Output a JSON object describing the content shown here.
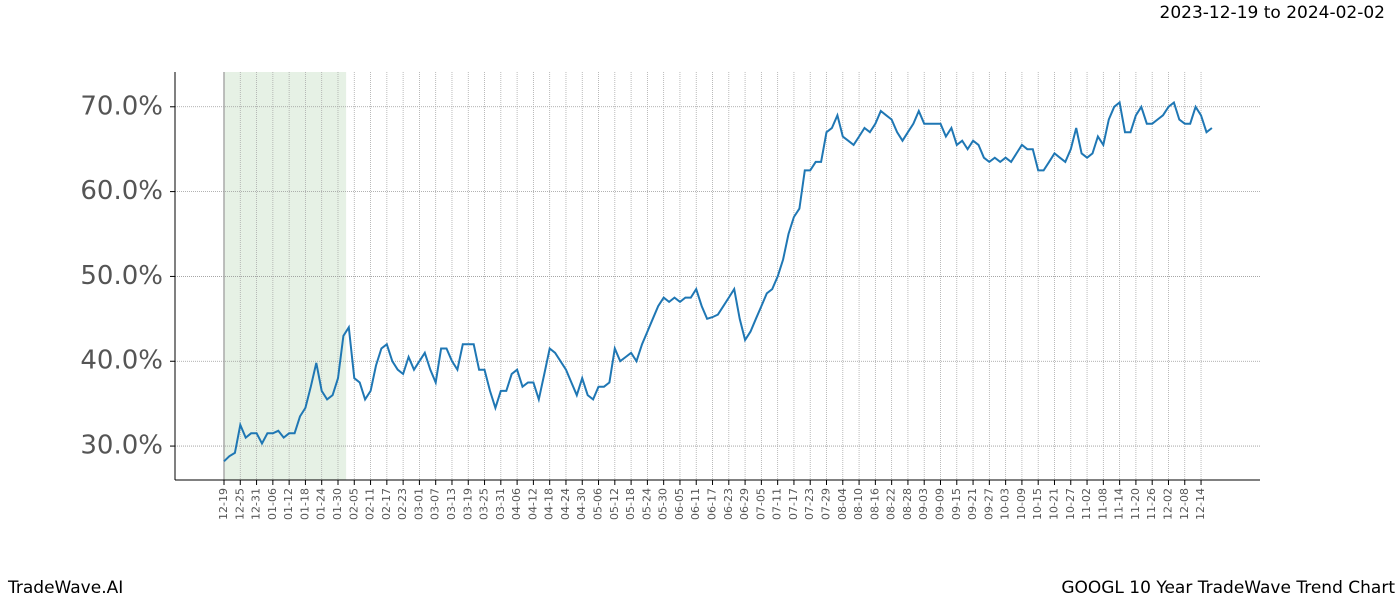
{
  "header": {
    "date_range": "2023-12-19 to 2024-02-02"
  },
  "footer": {
    "brand": "TradeWave.AI",
    "chart_name": "GOOGL 10 Year TradeWave Trend Chart"
  },
  "chart_data": {
    "type": "line",
    "color": "#1f77b4",
    "grid": true,
    "highlight": {
      "from": 0,
      "to": 22.5,
      "color": "#d5e8d4"
    },
    "ylim": [
      26,
      74.1
    ],
    "yticks": [
      {
        "value": 30,
        "label": "30.0%"
      },
      {
        "value": 40,
        "label": "40.0%"
      },
      {
        "value": 50,
        "label": "50.0%"
      },
      {
        "value": 60,
        "label": "60.0%"
      },
      {
        "value": 70,
        "label": "70.0%"
      }
    ],
    "categories": [
      "12-19",
      null,
      null,
      "12-25",
      null,
      null,
      "12-31",
      null,
      null,
      "01-06",
      null,
      null,
      "01-12",
      null,
      null,
      "01-18",
      null,
      null,
      "01-24",
      null,
      null,
      "01-30",
      null,
      null,
      "02-05",
      null,
      null,
      "02-11",
      null,
      null,
      "02-17",
      null,
      null,
      "02-23",
      null,
      null,
      "03-01",
      null,
      null,
      "03-07",
      null,
      null,
      "03-13",
      null,
      null,
      "03-19",
      null,
      null,
      "03-25",
      null,
      null,
      "03-31",
      null,
      null,
      "04-06",
      null,
      null,
      "04-12",
      null,
      null,
      "04-18",
      null,
      null,
      "04-24",
      null,
      null,
      "04-30",
      null,
      null,
      "05-06",
      null,
      null,
      "05-12",
      null,
      null,
      "05-18",
      null,
      null,
      "05-24",
      null,
      null,
      "05-30",
      null,
      null,
      "06-05",
      null,
      null,
      "06-11",
      null,
      null,
      "06-17",
      null,
      null,
      "06-23",
      null,
      null,
      "06-29",
      null,
      null,
      "07-05",
      null,
      null,
      "07-11",
      null,
      null,
      "07-17",
      null,
      null,
      "07-23",
      null,
      null,
      "07-29",
      null,
      null,
      "08-04",
      null,
      null,
      "08-10",
      null,
      null,
      "08-16",
      null,
      null,
      "08-22",
      null,
      null,
      "08-28",
      null,
      null,
      "09-03",
      null,
      null,
      "09-09",
      null,
      null,
      "09-15",
      null,
      null,
      "09-21",
      null,
      null,
      "09-27",
      null,
      null,
      "10-03",
      null,
      null,
      "10-09",
      null,
      null,
      "10-15",
      null,
      null,
      "10-21",
      null,
      null,
      "10-27",
      null,
      null,
      "11-02",
      null,
      null,
      "11-08",
      null,
      null,
      "11-14",
      null,
      null,
      "11-20",
      null,
      null,
      "11-26",
      null,
      null,
      "12-02",
      null,
      null,
      "12-08",
      null,
      null,
      "12-14",
      null,
      null
    ],
    "values": [
      28.2,
      28.8,
      29.2,
      32.5,
      31.0,
      31.5,
      31.5,
      30.3,
      31.5,
      31.5,
      31.8,
      31.0,
      31.5,
      31.5,
      33.5,
      34.5,
      37.0,
      39.8,
      36.5,
      35.5,
      36.0,
      38.0,
      43.0,
      44.0,
      38.0,
      37.5,
      35.5,
      36.5,
      39.5,
      41.5,
      42.0,
      40.0,
      39.0,
      38.5,
      40.5,
      39.0,
      40.0,
      41.0,
      39.0,
      37.5,
      41.5,
      41.5,
      40.0,
      39.0,
      42.0,
      42.0,
      42.0,
      39.0,
      39.0,
      36.5,
      34.5,
      36.5,
      36.5,
      38.5,
      39.0,
      37.0,
      37.5,
      37.5,
      35.5,
      38.5,
      41.5,
      41.0,
      40.0,
      39.0,
      37.5,
      36.0,
      38.0,
      36.0,
      35.5,
      37.0,
      37.0,
      37.5,
      41.5,
      40.0,
      40.5,
      41.0,
      40.0,
      42.0,
      43.5,
      45.0,
      46.5,
      47.5,
      47.0,
      47.5,
      47.0,
      47.5,
      47.5,
      48.5,
      46.5,
      45.0,
      45.2,
      45.5,
      46.5,
      47.5,
      48.5,
      45.0,
      42.5,
      43.5,
      45.0,
      46.5,
      48.0,
      48.5,
      50.0,
      52.0,
      55.0,
      57.0,
      58.0,
      62.5,
      62.5,
      63.5,
      63.5,
      67.0,
      67.5,
      69.0,
      66.5,
      66.0,
      65.5,
      66.5,
      67.5,
      67.0,
      68.0,
      69.5,
      69.0,
      68.5,
      67.0,
      66.0,
      67.0,
      68.0,
      69.5,
      68.0,
      68.0,
      68.0,
      68.0,
      66.5,
      67.5,
      65.5,
      66.0,
      65.0,
      66.0,
      65.5,
      64.0,
      63.5,
      64.0,
      63.5,
      64.0,
      63.5,
      64.5,
      65.5,
      65.0,
      65.0,
      62.5,
      62.5,
      63.5,
      64.5,
      64.0,
      63.5,
      65.0,
      67.5,
      64.5,
      64.0,
      64.5,
      66.5,
      65.5,
      68.5,
      70.0,
      70.5,
      67.0,
      67.0,
      69.0,
      70.0,
      68.0,
      68.0,
      68.5,
      69.0,
      70.0,
      70.5,
      68.5,
      68.0,
      68.0,
      70.0,
      69.0,
      67.0,
      67.5
    ]
  }
}
